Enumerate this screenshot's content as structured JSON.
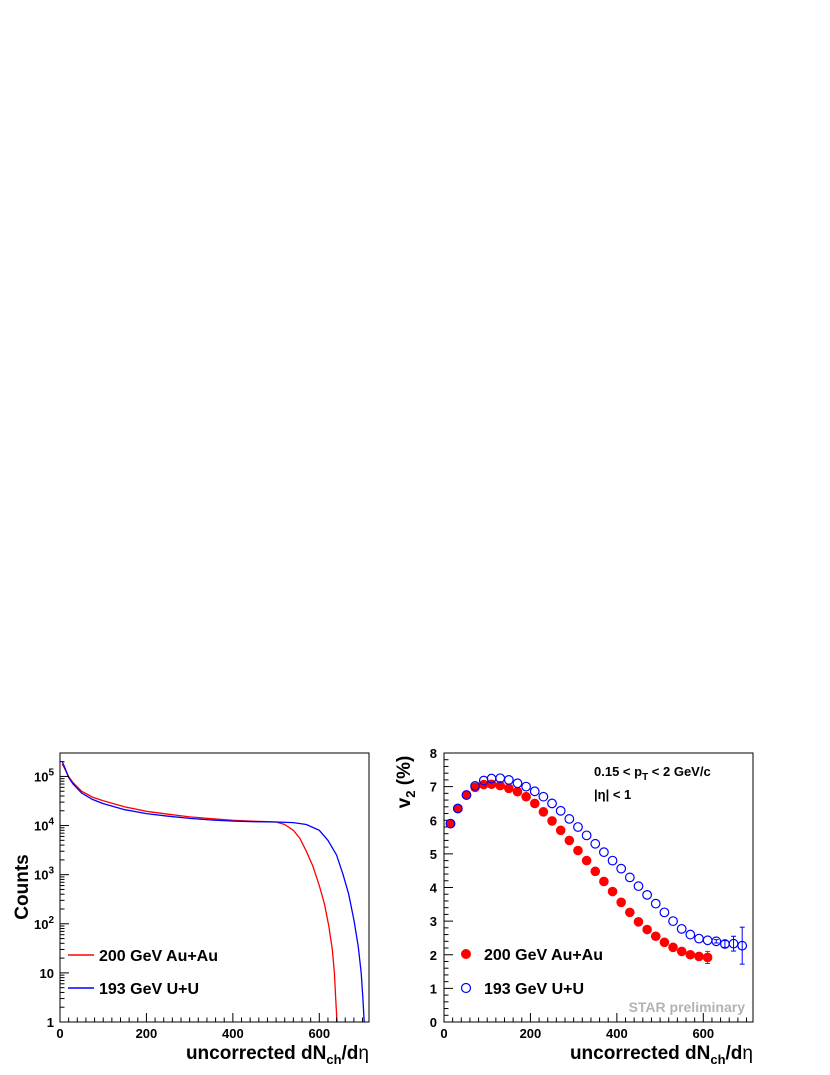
{
  "chart_data": [
    {
      "type": "line",
      "ylabel": "Counts",
      "xlabel_parts": [
        "uncorrected dN",
        "ch",
        "/d",
        "η"
      ],
      "xlim": [
        0,
        715
      ],
      "ylim": [
        1,
        300000
      ],
      "log_y": true,
      "x_ticks": [
        0,
        200,
        400,
        600
      ],
      "y_tick_labels": [
        {
          "v": 1,
          "base": "1",
          "exp": ""
        },
        {
          "v": 10,
          "base": "10",
          "exp": ""
        },
        {
          "v": 100,
          "base": "10",
          "exp": "2"
        },
        {
          "v": 1000,
          "base": "10",
          "exp": "3"
        },
        {
          "v": 10000,
          "base": "10",
          "exp": "4"
        },
        {
          "v": 100000,
          "base": "10",
          "exp": "5"
        }
      ],
      "legend_position": "bottom-left",
      "series": [
        {
          "name": "200 GeV Au+Au",
          "color": "#ff0000",
          "x": [
            5,
            10,
            20,
            30,
            50,
            75,
            100,
            150,
            200,
            250,
            300,
            350,
            400,
            450,
            480,
            500,
            520,
            540,
            555,
            570,
            585,
            600,
            612,
            622,
            630,
            635,
            638,
            641
          ],
          "y": [
            180000,
            150000,
            100000,
            75000,
            50000,
            38000,
            32000,
            24000,
            19500,
            17000,
            15000,
            13800,
            12800,
            12200,
            12000,
            11800,
            10500,
            8000,
            5500,
            3000,
            1500,
            600,
            250,
            90,
            30,
            10,
            3,
            1
          ]
        },
        {
          "name": "193 GeV U+U",
          "color": "#0000ff",
          "x": [
            5,
            10,
            20,
            30,
            50,
            75,
            100,
            150,
            200,
            250,
            300,
            350,
            400,
            450,
            500,
            540,
            570,
            600,
            620,
            640,
            655,
            668,
            680,
            690,
            697,
            701,
            704
          ],
          "y": [
            200000,
            160000,
            95000,
            70000,
            46000,
            34000,
            28000,
            21000,
            17500,
            15500,
            14000,
            13000,
            12300,
            12000,
            11800,
            11500,
            10500,
            8000,
            5000,
            2500,
            1000,
            400,
            120,
            35,
            10,
            3,
            1
          ]
        }
      ]
    },
    {
      "type": "scatter",
      "ylabel_parts": [
        "v",
        "2",
        " (%)"
      ],
      "xlabel_parts": [
        "uncorrected dN",
        "ch",
        "/d",
        "η"
      ],
      "xlim": [
        0,
        715
      ],
      "ylim": [
        0,
        8
      ],
      "x_ticks": [
        0,
        200,
        400,
        600
      ],
      "y_ticks": [
        0,
        1,
        2,
        3,
        4,
        5,
        6,
        7,
        8
      ],
      "annotation_pt": [
        "0.15 < p",
        "T",
        " < 2 GeV/c"
      ],
      "annotation_eta": "|η| < 1",
      "watermark": "STAR preliminary",
      "legend_position": "bottom-left",
      "series": [
        {
          "name": "200 GeV Au+Au",
          "color": "#ff0000",
          "marker": "filled-circle",
          "x": [
            15,
            32,
            52,
            72,
            92,
            110,
            130,
            150,
            170,
            190,
            210,
            230,
            250,
            270,
            290,
            310,
            330,
            350,
            370,
            390,
            410,
            430,
            450,
            470,
            490,
            510,
            530,
            550,
            570,
            590,
            610
          ],
          "y": [
            5.9,
            6.35,
            6.75,
            6.98,
            7.06,
            7.07,
            7.03,
            6.95,
            6.85,
            6.7,
            6.5,
            6.25,
            5.98,
            5.7,
            5.4,
            5.1,
            4.8,
            4.48,
            4.18,
            3.88,
            3.56,
            3.26,
            2.98,
            2.75,
            2.55,
            2.37,
            2.22,
            2.1,
            2.0,
            1.95,
            1.92
          ],
          "err": [
            0,
            0,
            0,
            0,
            0,
            0,
            0,
            0,
            0,
            0,
            0,
            0,
            0,
            0,
            0,
            0,
            0,
            0,
            0,
            0,
            0,
            0,
            0,
            0,
            0,
            0,
            0,
            0,
            0.05,
            0.08,
            0.18
          ]
        },
        {
          "name": "193 GeV U+U",
          "color": "#0000ff",
          "marker": "open-circle",
          "x": [
            15,
            32,
            52,
            72,
            92,
            110,
            130,
            150,
            170,
            190,
            210,
            230,
            250,
            270,
            290,
            310,
            330,
            350,
            370,
            390,
            410,
            430,
            450,
            470,
            490,
            510,
            530,
            550,
            570,
            590,
            610,
            630,
            650,
            670,
            690
          ],
          "y": [
            5.9,
            6.35,
            6.75,
            7.02,
            7.18,
            7.24,
            7.25,
            7.2,
            7.1,
            7.0,
            6.86,
            6.7,
            6.5,
            6.28,
            6.04,
            5.8,
            5.55,
            5.3,
            5.05,
            4.8,
            4.56,
            4.3,
            4.04,
            3.78,
            3.52,
            3.26,
            3.0,
            2.77,
            2.6,
            2.48,
            2.43,
            2.4,
            2.32,
            2.33,
            2.27
          ],
          "err": [
            0,
            0,
            0,
            0,
            0,
            0,
            0,
            0,
            0,
            0,
            0,
            0,
            0,
            0,
            0,
            0,
            0,
            0,
            0,
            0,
            0,
            0,
            0,
            0,
            0,
            0,
            0,
            0,
            0,
            0,
            0,
            0.05,
            0.1,
            0.22,
            0.55
          ]
        }
      ]
    }
  ]
}
